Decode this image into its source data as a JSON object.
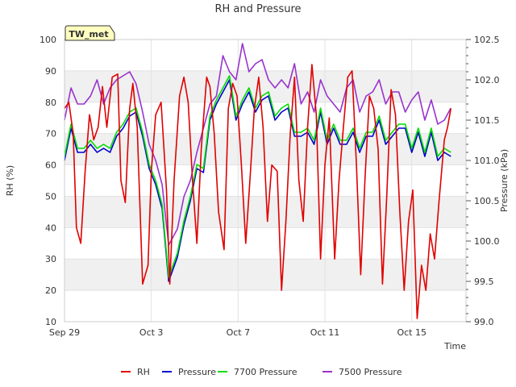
{
  "chart_data": {
    "type": "line",
    "title": "RH and Pressure",
    "badge": "TW_met",
    "xlabel": "Time",
    "ylabel_left": "RH (%)",
    "ylabel_right": "Pressure (kPa)",
    "xlim_days": [
      0,
      18.5
    ],
    "x_ticks": [
      {
        "day": 0,
        "label": "Sep 29"
      },
      {
        "day": 4,
        "label": "Oct 3"
      },
      {
        "day": 8,
        "label": "Oct 7"
      },
      {
        "day": 12,
        "label": "Oct 11"
      },
      {
        "day": 16,
        "label": "Oct 15"
      }
    ],
    "ylim_left": [
      10,
      100
    ],
    "yticks_left": [
      "10",
      "20",
      "30",
      "40",
      "50",
      "60",
      "70",
      "80",
      "90",
      "100"
    ],
    "ylim_right": [
      99.0,
      102.5
    ],
    "yticks_right": [
      "99.0",
      "99.5",
      "100.0",
      "100.5",
      "101.0",
      "101.5",
      "102.0",
      "102.5"
    ],
    "grid": true,
    "legend_position": "bottom",
    "series": [
      {
        "name": "RH",
        "axis": "left",
        "color": "#e00000",
        "x": [
          0.0,
          0.2,
          0.4,
          0.55,
          0.75,
          0.95,
          1.15,
          1.35,
          1.55,
          1.75,
          1.95,
          2.2,
          2.45,
          2.6,
          2.8,
          3.0,
          3.15,
          3.35,
          3.6,
          3.85,
          4.0,
          4.2,
          4.45,
          4.7,
          4.85,
          5.05,
          5.3,
          5.5,
          5.7,
          5.9,
          6.1,
          6.3,
          6.55,
          6.7,
          6.9,
          7.1,
          7.35,
          7.55,
          7.75,
          7.95,
          8.15,
          8.35,
          8.55,
          8.75,
          8.95,
          9.15,
          9.35,
          9.55,
          9.8,
          10.0,
          10.2,
          10.4,
          10.6,
          10.8,
          11.0,
          11.2,
          11.4,
          11.6,
          11.8,
          12.0,
          12.2,
          12.45,
          12.65,
          12.85,
          13.05,
          13.25,
          13.45,
          13.65,
          13.85,
          14.05,
          14.25,
          14.45,
          14.65,
          14.85,
          15.05,
          15.25,
          15.45,
          15.65,
          15.85,
          16.05,
          16.25,
          16.45,
          16.65,
          16.85,
          17.05,
          17.25,
          17.5,
          17.65,
          17.8
        ],
        "values": [
          78,
          80,
          70,
          40,
          35,
          58,
          76,
          68,
          72,
          85,
          72,
          88,
          89,
          55,
          48,
          78,
          86,
          72,
          22,
          28,
          58,
          76,
          80,
          52,
          22,
          55,
          82,
          88,
          80,
          55,
          35,
          65,
          88,
          85,
          70,
          45,
          33,
          78,
          86,
          82,
          60,
          35,
          56,
          78,
          88,
          72,
          42,
          60,
          58,
          20,
          42,
          70,
          88,
          55,
          42,
          72,
          92,
          76,
          30,
          60,
          75,
          30,
          55,
          72,
          88,
          90,
          60,
          25,
          56,
          82,
          78,
          65,
          22,
          50,
          84,
          76,
          45,
          20,
          42,
          52,
          11,
          28,
          20,
          38,
          30,
          48,
          68,
          72,
          78
        ]
      },
      {
        "name": "Pressure",
        "axis": "right",
        "color": "#0000cc",
        "x": [
          0.0,
          0.3,
          0.6,
          0.9,
          1.2,
          1.5,
          1.8,
          2.1,
          2.4,
          2.7,
          3.0,
          3.3,
          3.6,
          3.9,
          4.2,
          4.5,
          4.8,
          5.0,
          5.2,
          5.5,
          5.8,
          6.1,
          6.4,
          6.7,
          7.0,
          7.3,
          7.6,
          7.9,
          8.2,
          8.5,
          8.8,
          9.1,
          9.4,
          9.7,
          10.0,
          10.3,
          10.6,
          10.9,
          11.2,
          11.5,
          11.8,
          12.1,
          12.4,
          12.7,
          13.0,
          13.3,
          13.6,
          13.9,
          14.2,
          14.5,
          14.8,
          15.1,
          15.4,
          15.7,
          16.0,
          16.3,
          16.6,
          16.9,
          17.2,
          17.5,
          17.8
        ],
        "values": [
          101.0,
          101.4,
          101.1,
          101.1,
          101.2,
          101.1,
          101.15,
          101.1,
          101.3,
          101.4,
          101.55,
          101.6,
          101.3,
          100.9,
          100.7,
          100.4,
          99.5,
          99.65,
          99.8,
          100.2,
          100.5,
          100.9,
          100.85,
          101.5,
          101.7,
          101.85,
          102.0,
          101.5,
          101.7,
          101.85,
          101.6,
          101.75,
          101.8,
          101.5,
          101.6,
          101.65,
          101.3,
          101.3,
          101.35,
          101.2,
          101.6,
          101.2,
          101.4,
          101.2,
          101.2,
          101.35,
          101.1,
          101.3,
          101.3,
          101.5,
          101.2,
          101.3,
          101.4,
          101.4,
          101.1,
          101.35,
          101.05,
          101.35,
          101.0,
          101.1,
          101.05
        ]
      },
      {
        "name": "7700 Pressure",
        "axis": "right",
        "color": "#00dd00",
        "x": [
          0.0,
          0.3,
          0.6,
          0.9,
          1.2,
          1.5,
          1.8,
          2.1,
          2.4,
          2.7,
          3.0,
          3.3,
          3.6,
          3.9,
          4.2,
          4.5,
          4.8,
          5.0,
          5.2,
          5.5,
          5.8,
          6.1,
          6.4,
          6.7,
          7.0,
          7.3,
          7.6,
          7.9,
          8.2,
          8.5,
          8.8,
          9.1,
          9.4,
          9.7,
          10.0,
          10.3,
          10.6,
          10.9,
          11.2,
          11.5,
          11.8,
          12.1,
          12.4,
          12.7,
          13.0,
          13.3,
          13.6,
          13.9,
          14.2,
          14.5,
          14.8,
          15.1,
          15.4,
          15.7,
          16.0,
          16.3,
          16.6,
          16.9,
          17.2,
          17.5,
          17.8
        ],
        "values": [
          101.05,
          101.45,
          101.15,
          101.15,
          101.25,
          101.15,
          101.2,
          101.15,
          101.35,
          101.45,
          101.6,
          101.65,
          101.35,
          100.95,
          100.75,
          100.45,
          99.55,
          99.7,
          99.85,
          100.25,
          100.55,
          100.95,
          100.9,
          101.55,
          101.75,
          101.9,
          102.05,
          101.55,
          101.75,
          101.9,
          101.65,
          101.8,
          101.85,
          101.55,
          101.65,
          101.7,
          101.35,
          101.35,
          101.4,
          101.25,
          101.65,
          101.25,
          101.45,
          101.25,
          101.25,
          101.4,
          101.15,
          101.35,
          101.35,
          101.55,
          101.25,
          101.35,
          101.45,
          101.45,
          101.15,
          101.4,
          101.1,
          101.4,
          101.05,
          101.15,
          101.1
        ]
      },
      {
        "name": "7500 Pressure",
        "axis": "right",
        "color": "#9932cc",
        "x": [
          0.0,
          0.3,
          0.6,
          0.9,
          1.2,
          1.5,
          1.8,
          2.1,
          2.4,
          2.7,
          3.0,
          3.3,
          3.6,
          3.9,
          4.2,
          4.5,
          4.8,
          5.0,
          5.2,
          5.5,
          5.8,
          6.1,
          6.4,
          6.7,
          7.0,
          7.3,
          7.6,
          7.9,
          8.2,
          8.5,
          8.8,
          9.1,
          9.4,
          9.7,
          10.0,
          10.3,
          10.6,
          10.9,
          11.2,
          11.5,
          11.8,
          12.1,
          12.4,
          12.7,
          13.0,
          13.3,
          13.6,
          13.9,
          14.2,
          14.5,
          14.8,
          15.1,
          15.4,
          15.7,
          16.0,
          16.3,
          16.6,
          16.9,
          17.2,
          17.5,
          17.8
        ],
        "values": [
          101.5,
          101.9,
          101.7,
          101.7,
          101.8,
          102.0,
          101.7,
          101.9,
          102.0,
          102.05,
          102.1,
          101.95,
          101.6,
          101.2,
          101.0,
          100.7,
          99.95,
          100.05,
          100.15,
          100.55,
          100.75,
          101.1,
          101.4,
          101.7,
          101.8,
          102.3,
          102.1,
          102.0,
          102.45,
          102.1,
          102.2,
          102.25,
          102.0,
          101.9,
          102.0,
          101.9,
          102.2,
          101.7,
          101.85,
          101.6,
          102.0,
          101.8,
          101.7,
          101.6,
          101.9,
          102.0,
          101.6,
          101.8,
          101.85,
          102.0,
          101.7,
          101.85,
          101.85,
          101.6,
          101.75,
          101.85,
          101.5,
          101.75,
          101.45,
          101.5,
          101.65
        ]
      }
    ]
  }
}
